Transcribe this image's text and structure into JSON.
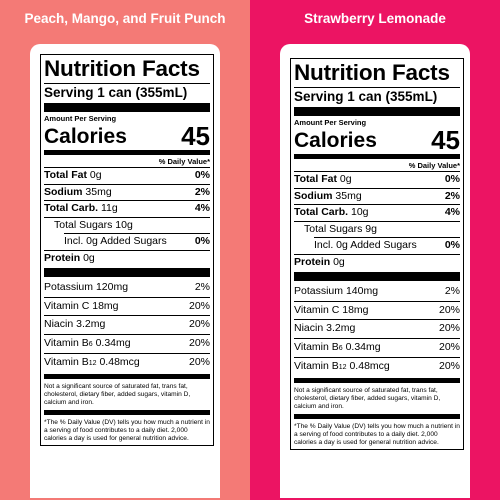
{
  "panels": [
    {
      "flavor": "Peach, Mango, and Fruit Punch",
      "background": "#f47a76",
      "label": {
        "title": "Nutrition Facts",
        "serving": "Serving 1 can (355mL)",
        "amount_per_serving": "Amount Per Serving",
        "calories_label": "Calories",
        "calories_value": "45",
        "daily_value_header": "% Daily Value*",
        "nutrients": [
          {
            "name": "Total Fat",
            "amount": "0g",
            "dv": "0%"
          },
          {
            "name": "Sodium",
            "amount": "35mg",
            "dv": "2%"
          },
          {
            "name": "Total Carb.",
            "amount": "11g",
            "dv": "4%"
          },
          {
            "name": "Total Sugars",
            "amount": "10g",
            "dv": ""
          },
          {
            "name": "Incl. 0g Added Sugars",
            "amount": "",
            "dv": "0%"
          },
          {
            "name": "Protein",
            "amount": "0g",
            "dv": ""
          }
        ],
        "vitamins": [
          {
            "name": "Potassium",
            "amount": "120mg",
            "dv": "2%"
          },
          {
            "name": "Vitamin C",
            "amount": "18mg",
            "dv": "20%"
          },
          {
            "name": "Niacin",
            "amount": "3.2mg",
            "dv": "20%"
          },
          {
            "name": "Vitamin B",
            "sub": "6",
            "amount": "0.34mg",
            "dv": "20%"
          },
          {
            "name": "Vitamin B",
            "sub": "12",
            "amount": "0.48mcg",
            "dv": "20%"
          }
        ],
        "not_significant": "Not a significant source of saturated fat, trans fat, cholesterol, dietary fiber, added sugars, vitamin D, calcium and iron.",
        "footnote": "*The % Daily Value (DV) tells you how much a nutrient in a serving of food contributes to a daily diet. 2,000 calories a day is used for general nutrition advice."
      }
    },
    {
      "flavor": "Strawberry Lemonade",
      "background": "#ec1463",
      "label": {
        "title": "Nutrition Facts",
        "serving": "Serving 1 can (355mL)",
        "amount_per_serving": "Amount Per Serving",
        "calories_label": "Calories",
        "calories_value": "45",
        "daily_value_header": "% Daily Value*",
        "nutrients": [
          {
            "name": "Total Fat",
            "amount": "0g",
            "dv": "0%"
          },
          {
            "name": "Sodium",
            "amount": "35mg",
            "dv": "2%"
          },
          {
            "name": "Total Carb.",
            "amount": "10g",
            "dv": "4%"
          },
          {
            "name": "Total Sugars",
            "amount": "9g",
            "dv": ""
          },
          {
            "name": "Incl. 0g Added Sugars",
            "amount": "",
            "dv": "0%"
          },
          {
            "name": "Protein",
            "amount": "0g",
            "dv": ""
          }
        ],
        "vitamins": [
          {
            "name": "Potassium",
            "amount": "140mg",
            "dv": "2%"
          },
          {
            "name": "Vitamin C",
            "amount": "18mg",
            "dv": "20%"
          },
          {
            "name": "Niacin",
            "amount": "3.2mg",
            "dv": "20%"
          },
          {
            "name": "Vitamin B",
            "sub": "6",
            "amount": "0.34mg",
            "dv": "20%"
          },
          {
            "name": "Vitamin B",
            "sub": "12",
            "amount": "0.48mcg",
            "dv": "20%"
          }
        ],
        "not_significant": "Not a significant source of saturated fat, trans fat, cholesterol, dietary fiber, added sugars, vitamin D, calcium and iron.",
        "footnote": "*The % Daily Value (DV) tells you how much a nutrient in a serving of food contributes to a daily diet. 2,000 calories a day is used for general nutrition advice."
      }
    }
  ]
}
